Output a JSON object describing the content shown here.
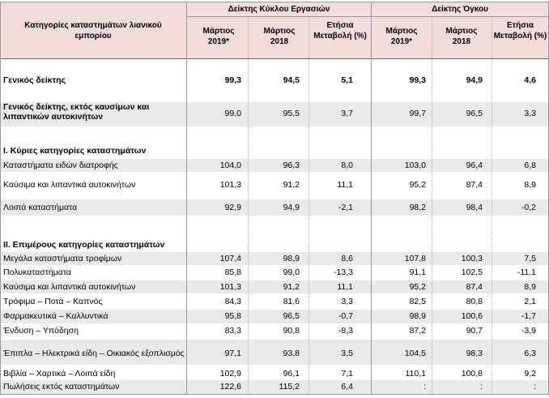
{
  "header": {
    "category_col": "Κατηγορίες καταστημάτων λιανικού εμπορίου",
    "group1": "Δείκτης Κύκλου Εργασιών",
    "group2": "Δείκτης Όγκου",
    "col_march2019": "Μάρτιος 2019*",
    "col_march2018": "Μάρτιος 2018",
    "col_annual": "Ετήσια Μεταβολή (%)"
  },
  "rows": [
    {
      "label": "Γενικός δείκτης",
      "v": [
        "99,3",
        "94,5",
        "5,1",
        "99,3",
        "94,9",
        "4,6"
      ],
      "bold": true
    },
    {
      "label": "Γενικός δείκτης, εκτός καυσίμων και λιπαντικών αυτοκινήτων",
      "v": [
        "99,0",
        "95,5",
        "3,7",
        "99,7",
        "96,5",
        "3,3"
      ],
      "boldlabel": true
    },
    {
      "label": "Ι. Κύριες κατηγορίες καταστημάτων",
      "section": true
    },
    {
      "label": "Καταστήματα ειδών διατροφής",
      "v": [
        "104,0",
        "96,3",
        "8,0",
        "103,0",
        "96,4",
        "6,8"
      ]
    },
    {
      "label": "Καύσιμα και λιπαντικά αυτοκινήτων",
      "v": [
        "101,3",
        "91,2",
        "11,1",
        "95,2",
        "87,4",
        "8,9"
      ]
    },
    {
      "label": "Λοιπά καταστήματα",
      "v": [
        "92,9",
        "94,9",
        "-2,1",
        "98,2",
        "98,4",
        "-0,2"
      ]
    },
    {
      "label": "ΙΙ. Επιμέρους κατηγορίες καταστημάτων",
      "section": true
    },
    {
      "label": "Μεγάλα καταστήματα τροφίμων",
      "v": [
        "107,4",
        "98,9",
        "8,6",
        "107,8",
        "100,3",
        "7,5"
      ]
    },
    {
      "label": "Πολυκαταστήματα",
      "v": [
        "85,8",
        "99,0",
        "-13,3",
        "91,1",
        "102,5",
        "-11,1"
      ]
    },
    {
      "label": "Καύσιμα και λιπαντικά αυτοκινήτων",
      "v": [
        "101,3",
        "91,2",
        "11,1",
        "95,2",
        "87,4",
        "8,9"
      ]
    },
    {
      "label": "Τρόφιμα – Ποτά – Καπνός",
      "v": [
        "84,3",
        "81,6",
        "3,3",
        "82,5",
        "80,8",
        "2,1"
      ]
    },
    {
      "label": "Φαρμακευτικά – Καλλυντικά",
      "v": [
        "95,8",
        "96,5",
        "-0,7",
        "98,9",
        "100,6",
        "-1,7"
      ]
    },
    {
      "label": "Ένδυση – Υπόδηση",
      "v": [
        "83,3",
        "90,8",
        "-8,3",
        "87,2",
        "90,7",
        "-3,9"
      ]
    },
    {
      "label": "Έπιπλα – Ηλεκτρικά είδη – Οικιακός εξοπλισμός",
      "v": [
        "97,1",
        "93,8",
        "3,5",
        "104,5",
        "98,3",
        "6,3"
      ]
    },
    {
      "label": "Βιβλία – Χαρτικά – Λοιπά είδη",
      "v": [
        "102,9",
        "96,1",
        "7,1",
        "110,1",
        "100,8",
        "9,2"
      ]
    },
    {
      "label": "Πωλήσεις εκτός καταστημάτων",
      "v": [
        "122,6",
        "115,2",
        "6,4",
        ":",
        ":",
        ":"
      ]
    }
  ]
}
